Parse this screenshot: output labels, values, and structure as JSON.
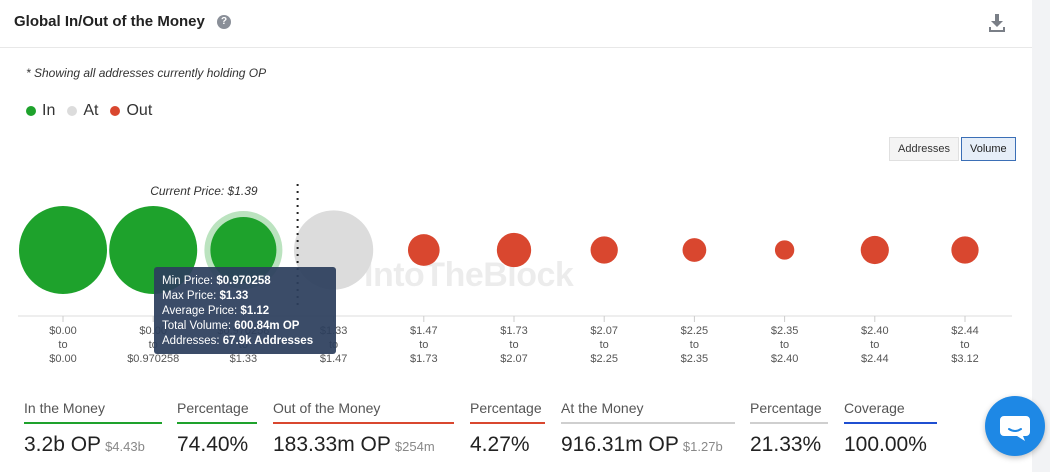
{
  "header": {
    "title": "Global In/Out of the Money"
  },
  "note": "* Showing all addresses currently holding OP",
  "legend": [
    {
      "label": "In",
      "color": "#1ea22c"
    },
    {
      "label": "At",
      "color": "#dcdcdc"
    },
    {
      "label": "Out",
      "color": "#d9472f"
    }
  ],
  "toggle": {
    "addresses_label": "Addresses",
    "volume_label": "Volume",
    "active": "Volume"
  },
  "watermark": "IntoTheBlock",
  "chart_data": {
    "type": "bubble",
    "current_price_label": "Current Price: $1.39",
    "current_price_index": 3,
    "bubbles": [
      {
        "from": "$0.00",
        "to": "$0.00",
        "status": "In",
        "relative_size": 1.0
      },
      {
        "from": "$0.00",
        "to": "$0.970258",
        "status": "In",
        "relative_size": 1.0
      },
      {
        "from": "$0.970258",
        "to": "$1.33",
        "status": "In",
        "relative_size": 0.75,
        "highlighted": true
      },
      {
        "from": "$1.33",
        "to": "$1.47",
        "status": "At",
        "relative_size": 0.9
      },
      {
        "from": "$1.47",
        "to": "$1.73",
        "status": "Out",
        "relative_size": 0.36
      },
      {
        "from": "$1.73",
        "to": "$2.07",
        "status": "Out",
        "relative_size": 0.39
      },
      {
        "from": "$2.07",
        "to": "$2.25",
        "status": "Out",
        "relative_size": 0.31
      },
      {
        "from": "$2.25",
        "to": "$2.35",
        "status": "Out",
        "relative_size": 0.27
      },
      {
        "from": "$2.35",
        "to": "$2.40",
        "status": "Out",
        "relative_size": 0.22
      },
      {
        "from": "$2.40",
        "to": "$2.44",
        "status": "Out",
        "relative_size": 0.32
      },
      {
        "from": "$2.44",
        "to": "$3.12",
        "status": "Out",
        "relative_size": 0.31
      }
    ],
    "to_word": "to",
    "colors": {
      "In": "#1ea22c",
      "At": "#dcdcdc",
      "Out": "#d9472f"
    }
  },
  "tooltip": {
    "min_price_label": "Min Price:",
    "min_price": "$0.970258",
    "max_price_label": "Max Price:",
    "max_price": "$1.33",
    "avg_price_label": "Average Price:",
    "avg_price": "$1.12",
    "volume_label": "Total Volume:",
    "volume": "600.84m OP",
    "addresses_label": "Addresses:",
    "addresses": "67.9k Addresses"
  },
  "stats": [
    {
      "label": "In the Money",
      "value": "3.2b OP",
      "sub": "$4.43b",
      "color": "#1ea22c"
    },
    {
      "label": "Percentage",
      "value": "74.40%",
      "sub": "",
      "color": "#1ea22c"
    },
    {
      "label": "Out of the Money",
      "value": "183.33m OP",
      "sub": "$254m",
      "color": "#d9472f"
    },
    {
      "label": "Percentage",
      "value": "4.27%",
      "sub": "",
      "color": "#d9472f"
    },
    {
      "label": "At the Money",
      "value": "916.31m OP",
      "sub": "$1.27b",
      "color": "#cfcfcf"
    },
    {
      "label": "Percentage",
      "value": "21.33%",
      "sub": "",
      "color": "#cfcfcf"
    },
    {
      "label": "Coverage",
      "value": "100.00%",
      "sub": "",
      "color": "#1f4fd1"
    }
  ]
}
